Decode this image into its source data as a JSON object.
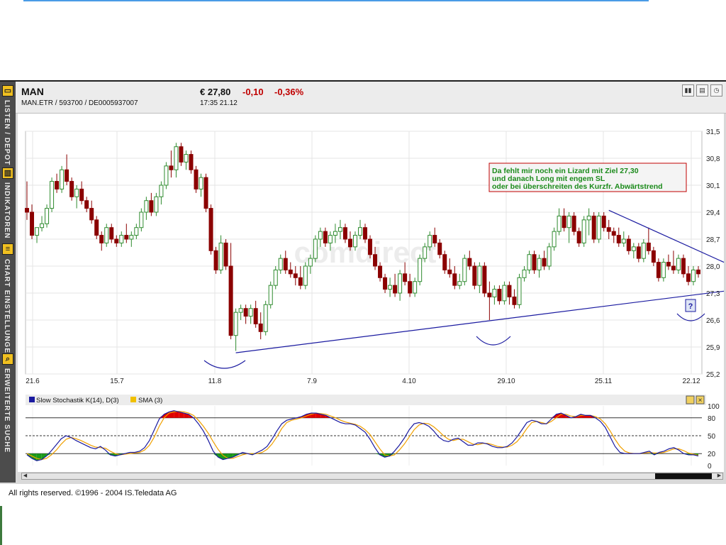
{
  "header": {
    "name": "MAN",
    "ids": "MAN.ETR  /  593700  /  DE0005937007",
    "price": "€ 27,80",
    "change": "-0,10",
    "change_pct": "-0,36%",
    "time": "17:35   21.12"
  },
  "sidebar": {
    "tabs": [
      {
        "label": "LISTEN / DEPOT",
        "icon": "folder-icon"
      },
      {
        "label": "INDIKATOREN",
        "icon": "chart-icon"
      },
      {
        "label": "CHART EINSTELLUNGEN",
        "icon": "list-icon"
      },
      {
        "label": "ERWEITERTE SUCHE",
        "icon": "search-icon"
      }
    ]
  },
  "annotation": {
    "line1": "Da fehlt mir noch ein Lizard mit Ziel 27,30",
    "line2": "und danach Long mit engem SL",
    "line3": "oder bei überschreiten des Kurzfr. Abwärtstrend",
    "question": "?"
  },
  "watermark": "comdirect",
  "footer": "All rights reserved. ©1996 - 2004 IS.Teledata AG",
  "colors": {
    "up": "#2e8b2e",
    "down": "#8b0000",
    "trendline": "#1a1aa0",
    "stoch_k": "#1a1aa0",
    "stoch_d": "#f0a000",
    "annotation_text": "#1a8a1a",
    "annotation_border": "#c00000"
  },
  "chart_data": {
    "type": "candlestick",
    "y_ticks": [
      "31,5",
      "30,8",
      "30,1",
      "29,4",
      "28,7",
      "28,0",
      "27,3",
      "26,6",
      "25,9",
      "25,2"
    ],
    "ylim": [
      25.2,
      31.5
    ],
    "x_ticks": [
      "21.6",
      "15.7",
      "11.8",
      "7.9",
      "4.10",
      "29.10",
      "25.11",
      "22.12"
    ],
    "candles": [
      [
        29.5,
        30.2,
        29.2,
        29.4
      ],
      [
        29.4,
        29.6,
        28.7,
        28.8
      ],
      [
        28.8,
        29.0,
        28.6,
        29.0
      ],
      [
        29.0,
        29.3,
        28.9,
        29.1
      ],
      [
        29.1,
        29.6,
        29.0,
        29.5
      ],
      [
        29.5,
        30.3,
        29.4,
        30.2
      ],
      [
        30.2,
        30.4,
        29.9,
        30.0
      ],
      [
        30.0,
        30.6,
        29.9,
        30.5
      ],
      [
        30.5,
        30.9,
        30.1,
        30.2
      ],
      [
        30.2,
        30.3,
        29.7,
        29.8
      ],
      [
        29.8,
        30.1,
        29.5,
        30.0
      ],
      [
        30.0,
        30.2,
        29.6,
        29.7
      ],
      [
        29.7,
        29.8,
        29.4,
        29.5
      ],
      [
        29.5,
        29.7,
        29.1,
        29.2
      ],
      [
        29.2,
        29.3,
        28.7,
        28.8
      ],
      [
        28.8,
        28.9,
        28.4,
        28.6
      ],
      [
        28.6,
        29.1,
        28.5,
        29.0
      ],
      [
        29.0,
        29.1,
        28.6,
        28.7
      ],
      [
        28.7,
        28.8,
        28.5,
        28.6
      ],
      [
        28.6,
        28.9,
        28.5,
        28.8
      ],
      [
        28.8,
        29.1,
        28.6,
        28.7
      ],
      [
        28.7,
        28.9,
        28.5,
        28.8
      ],
      [
        28.8,
        29.1,
        28.7,
        29.0
      ],
      [
        29.0,
        29.5,
        28.9,
        29.4
      ],
      [
        29.4,
        29.8,
        29.2,
        29.7
      ],
      [
        29.7,
        29.9,
        29.3,
        29.4
      ],
      [
        29.4,
        29.9,
        29.3,
        29.8
      ],
      [
        29.8,
        30.2,
        29.6,
        30.1
      ],
      [
        30.1,
        30.7,
        30.0,
        30.6
      ],
      [
        30.6,
        31.0,
        30.3,
        30.5
      ],
      [
        30.5,
        31.2,
        30.3,
        31.1
      ],
      [
        31.1,
        31.2,
        30.6,
        30.7
      ],
      [
        30.7,
        31.0,
        30.5,
        30.9
      ],
      [
        30.9,
        31.0,
        30.4,
        30.5
      ],
      [
        30.5,
        30.6,
        29.9,
        30.0
      ],
      [
        30.0,
        30.4,
        29.8,
        30.3
      ],
      [
        30.3,
        30.4,
        29.4,
        29.5
      ],
      [
        29.5,
        29.6,
        28.3,
        28.4
      ],
      [
        28.4,
        28.5,
        27.8,
        27.9
      ],
      [
        27.9,
        28.8,
        27.8,
        28.6
      ],
      [
        28.6,
        28.7,
        27.9,
        28.0
      ],
      [
        28.0,
        28.6,
        26.1,
        26.2
      ],
      [
        26.2,
        26.9,
        25.8,
        26.8
      ],
      [
        26.8,
        27.0,
        26.6,
        26.9
      ],
      [
        26.9,
        27.0,
        26.5,
        26.7
      ],
      [
        26.7,
        27.0,
        26.5,
        26.9
      ],
      [
        26.9,
        27.1,
        26.4,
        26.5
      ],
      [
        26.5,
        26.8,
        26.1,
        26.3
      ],
      [
        26.3,
        27.1,
        26.2,
        27.0
      ],
      [
        27.0,
        27.6,
        26.9,
        27.5
      ],
      [
        27.5,
        28.0,
        27.4,
        27.9
      ],
      [
        27.9,
        28.3,
        27.8,
        28.2
      ],
      [
        28.2,
        28.4,
        27.8,
        27.9
      ],
      [
        27.9,
        28.1,
        27.7,
        27.8
      ],
      [
        27.8,
        28.0,
        27.5,
        27.7
      ],
      [
        27.7,
        28.0,
        27.4,
        27.5
      ],
      [
        27.5,
        28.1,
        27.4,
        28.0
      ],
      [
        28.0,
        28.3,
        27.8,
        28.2
      ],
      [
        28.2,
        28.8,
        28.1,
        28.7
      ],
      [
        28.7,
        29.0,
        28.5,
        28.9
      ],
      [
        28.9,
        29.0,
        28.5,
        28.6
      ],
      [
        28.6,
        28.9,
        28.4,
        28.8
      ],
      [
        28.8,
        29.1,
        28.6,
        28.9
      ],
      [
        28.9,
        29.2,
        28.7,
        29.0
      ],
      [
        29.0,
        29.1,
        28.6,
        28.7
      ],
      [
        28.7,
        28.9,
        28.4,
        28.5
      ],
      [
        28.5,
        28.9,
        28.4,
        28.8
      ],
      [
        28.8,
        29.2,
        28.7,
        29.0
      ],
      [
        29.0,
        29.1,
        28.6,
        28.7
      ],
      [
        28.7,
        28.8,
        28.2,
        28.3
      ],
      [
        28.3,
        28.5,
        27.9,
        28.0
      ],
      [
        28.0,
        28.1,
        27.6,
        27.7
      ],
      [
        27.7,
        27.8,
        27.3,
        27.4
      ],
      [
        27.4,
        27.7,
        27.2,
        27.5
      ],
      [
        27.5,
        27.8,
        27.2,
        27.3
      ],
      [
        27.3,
        27.9,
        27.1,
        27.8
      ],
      [
        27.8,
        28.1,
        27.5,
        27.6
      ],
      [
        27.6,
        27.8,
        27.2,
        27.3
      ],
      [
        27.3,
        27.7,
        27.2,
        27.6
      ],
      [
        27.6,
        28.3,
        27.5,
        28.2
      ],
      [
        28.2,
        28.6,
        28.1,
        28.5
      ],
      [
        28.5,
        28.9,
        28.4,
        28.8
      ],
      [
        28.8,
        29.0,
        28.5,
        28.6
      ],
      [
        28.6,
        28.7,
        28.2,
        28.3
      ],
      [
        28.3,
        28.4,
        27.8,
        27.9
      ],
      [
        27.9,
        28.2,
        27.7,
        27.8
      ],
      [
        27.8,
        28.0,
        27.4,
        27.5
      ],
      [
        27.5,
        27.8,
        27.4,
        27.6
      ],
      [
        27.6,
        28.3,
        27.5,
        28.2
      ],
      [
        28.2,
        28.4,
        27.9,
        28.0
      ],
      [
        28.0,
        28.1,
        27.4,
        27.5
      ],
      [
        27.5,
        28.1,
        27.3,
        28.0
      ],
      [
        28.0,
        28.1,
        27.2,
        27.3
      ],
      [
        27.3,
        27.6,
        26.6,
        27.2
      ],
      [
        27.2,
        27.5,
        27.0,
        27.4
      ],
      [
        27.4,
        27.5,
        27.0,
        27.1
      ],
      [
        27.1,
        27.6,
        27.0,
        27.5
      ],
      [
        27.5,
        27.6,
        27.0,
        27.2
      ],
      [
        27.2,
        27.4,
        26.9,
        27.0
      ],
      [
        27.0,
        27.8,
        26.9,
        27.7
      ],
      [
        27.7,
        28.0,
        27.6,
        27.9
      ],
      [
        27.9,
        28.4,
        27.8,
        28.3
      ],
      [
        28.3,
        28.4,
        27.8,
        27.9
      ],
      [
        27.9,
        28.3,
        27.7,
        28.2
      ],
      [
        28.2,
        28.4,
        27.9,
        28.0
      ],
      [
        28.0,
        28.6,
        27.9,
        28.5
      ],
      [
        28.5,
        29.0,
        28.4,
        28.9
      ],
      [
        28.9,
        29.5,
        28.8,
        29.3
      ],
      [
        29.3,
        29.5,
        28.9,
        29.0
      ],
      [
        29.0,
        29.4,
        28.6,
        29.3
      ],
      [
        29.3,
        29.4,
        28.8,
        28.9
      ],
      [
        28.9,
        29.0,
        28.5,
        28.6
      ],
      [
        28.6,
        29.3,
        28.5,
        29.2
      ],
      [
        29.2,
        29.5,
        28.8,
        29.3
      ],
      [
        29.3,
        29.4,
        28.6,
        28.7
      ],
      [
        28.7,
        29.4,
        28.6,
        29.3
      ],
      [
        29.3,
        29.4,
        28.9,
        29.0
      ],
      [
        29.0,
        29.2,
        28.7,
        28.9
      ],
      [
        28.9,
        29.0,
        28.6,
        28.8
      ],
      [
        28.8,
        29.0,
        28.5,
        28.6
      ],
      [
        28.6,
        28.9,
        28.5,
        28.7
      ],
      [
        28.7,
        28.8,
        28.3,
        28.4
      ],
      [
        28.4,
        28.6,
        28.2,
        28.5
      ],
      [
        28.5,
        28.6,
        28.1,
        28.2
      ],
      [
        28.2,
        28.7,
        28.1,
        28.6
      ],
      [
        28.6,
        29.0,
        28.3,
        28.4
      ],
      [
        28.4,
        28.5,
        28.0,
        28.1
      ],
      [
        28.1,
        28.2,
        27.6,
        27.7
      ],
      [
        27.7,
        28.2,
        27.6,
        28.1
      ],
      [
        28.1,
        28.3,
        27.9,
        28.0
      ],
      [
        28.0,
        28.4,
        27.8,
        27.9
      ],
      [
        27.9,
        28.3,
        27.8,
        28.2
      ],
      [
        28.2,
        28.3,
        27.7,
        27.8
      ],
      [
        27.8,
        28.0,
        27.5,
        27.6
      ],
      [
        27.6,
        28.0,
        27.5,
        27.9
      ],
      [
        27.9,
        28.0,
        27.7,
        27.8
      ]
    ],
    "trendlines": [
      {
        "from": {
          "candle": 42,
          "price": 25.75
        },
        "to": {
          "candle": 139,
          "price": 27.35
        }
      },
      {
        "from": {
          "candle": 117,
          "price": 29.45
        },
        "to": {
          "candle": 139,
          "price": 28.1
        }
      }
    ],
    "stochastic": {
      "title_k": "Slow Stochastik K(14), D(3)",
      "title_d": "SMA (3)",
      "y_ticks": [
        "100",
        "80",
        "50",
        "20",
        "0"
      ],
      "levels": [
        80,
        50,
        20
      ],
      "k": [
        18,
        12,
        8,
        10,
        16,
        25,
        35,
        45,
        50,
        47,
        42,
        38,
        34,
        30,
        28,
        32,
        26,
        18,
        16,
        18,
        20,
        22,
        22,
        24,
        30,
        42,
        60,
        78,
        86,
        90,
        92,
        90,
        88,
        86,
        80,
        70,
        58,
        42,
        24,
        14,
        10,
        12,
        14,
        18,
        22,
        20,
        18,
        22,
        26,
        32,
        44,
        58,
        70,
        76,
        78,
        80,
        82,
        86,
        88,
        88,
        86,
        84,
        80,
        76,
        72,
        70,
        70,
        68,
        62,
        56,
        44,
        30,
        18,
        14,
        16,
        24,
        34,
        46,
        60,
        70,
        72,
        70,
        66,
        58,
        48,
        42,
        40,
        44,
        46,
        40,
        34,
        34,
        38,
        38,
        36,
        32,
        30,
        30,
        32,
        38,
        48,
        60,
        72,
        76,
        74,
        70,
        70,
        78,
        86,
        88,
        84,
        80,
        82,
        86,
        84,
        84,
        80,
        74,
        64,
        48,
        32,
        22,
        20,
        20,
        20,
        20,
        22,
        24,
        18,
        22,
        24,
        28,
        30,
        26,
        20,
        18,
        18,
        16
      ],
      "d": [
        20,
        16,
        12,
        10,
        12,
        18,
        26,
        36,
        44,
        47,
        45,
        42,
        38,
        34,
        31,
        30,
        29,
        24,
        20,
        18,
        19,
        20,
        21,
        22,
        26,
        34,
        48,
        66,
        80,
        88,
        90,
        91,
        90,
        88,
        84,
        76,
        66,
        54,
        40,
        27,
        17,
        12,
        12,
        15,
        18,
        20,
        20,
        20,
        22,
        27,
        36,
        48,
        62,
        72,
        76,
        78,
        80,
        83,
        86,
        88,
        87,
        86,
        83,
        80,
        76,
        73,
        71,
        69,
        66,
        60,
        52,
        40,
        28,
        18,
        16,
        18,
        26,
        36,
        48,
        60,
        68,
        71,
        70,
        65,
        58,
        50,
        44,
        42,
        44,
        44,
        40,
        36,
        35,
        37,
        37,
        35,
        32,
        31,
        31,
        34,
        40,
        50,
        62,
        72,
        74,
        72,
        70,
        74,
        80,
        86,
        86,
        83,
        82,
        84,
        84,
        84,
        82,
        78,
        70,
        58,
        44,
        32,
        24,
        21,
        20,
        20,
        21,
        22,
        21,
        21,
        22,
        25,
        28,
        28,
        25,
        21,
        19,
        17
      ]
    }
  }
}
